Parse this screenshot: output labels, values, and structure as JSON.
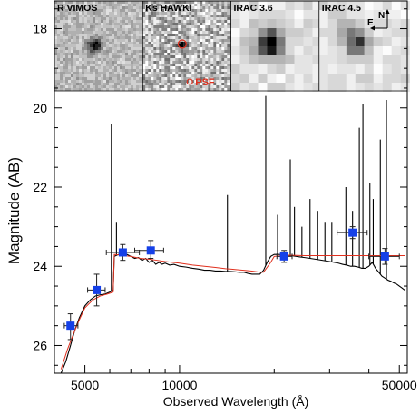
{
  "chart_data": {
    "type": "scatter",
    "title": "",
    "xlabel": "Observed Wavelength (Å)",
    "ylabel": "Magnitude (AB)",
    "x_scale": "log",
    "xlim": [
      4000,
      53000
    ],
    "ylim": [
      26.7,
      17.3
    ],
    "y_inverted": true,
    "grid": false,
    "x_ticks": [
      5000,
      10000,
      50000
    ],
    "x_tick_labels": [
      "5000",
      "10000",
      "50000"
    ],
    "y_ticks": [
      18,
      20,
      22,
      24,
      26
    ],
    "y_tick_labels": [
      "18",
      "20",
      "22",
      "24",
      "26"
    ],
    "photometry": {
      "color": "#1540e8",
      "points": [
        {
          "x": 4500,
          "y": 25.5,
          "xerr": [
            4300,
            4750
          ],
          "yerr": [
            25.2,
            25.85
          ]
        },
        {
          "x": 5450,
          "y": 24.6,
          "xerr": [
            5100,
            5800
          ],
          "yerr": [
            24.2,
            25.0
          ]
        },
        {
          "x": 6600,
          "y": 23.65,
          "xerr": [
            5850,
            7450
          ],
          "yerr": [
            23.45,
            23.85
          ]
        },
        {
          "x": 8100,
          "y": 23.6,
          "xerr": [
            7200,
            8900
          ],
          "yerr": [
            23.35,
            23.8
          ]
        },
        {
          "x": 21500,
          "y": 23.75,
          "xerr": [
            20400,
            22800
          ],
          "yerr": [
            23.6,
            23.9
          ]
        },
        {
          "x": 35500,
          "y": 23.15,
          "xerr": [
            31700,
            39500
          ],
          "yerr": [
            23.0,
            23.3
          ]
        },
        {
          "x": 45000,
          "y": 23.75,
          "xerr": [
            40000,
            50000
          ],
          "yerr": [
            23.55,
            23.95
          ]
        }
      ]
    },
    "model_black": {
      "color": "#000000",
      "x": [
        4200,
        4350,
        4500,
        4650,
        4800,
        5000,
        5200,
        5400,
        5600,
        5800,
        6000,
        6150,
        6200,
        6400,
        6600,
        6800,
        7000,
        7200,
        7400,
        7600,
        7800,
        8000,
        8200,
        8400,
        8600,
        8800,
        9000,
        9300,
        9600,
        10000,
        10500,
        11000,
        11500,
        12000,
        12500,
        13000,
        13500,
        14000,
        14500,
        15000,
        15500,
        16000,
        16500,
        17000,
        17500,
        18000,
        18500,
        19000,
        19500,
        20000,
        21000,
        22000,
        23000,
        24000,
        25000,
        26000,
        27000,
        28000,
        29000,
        30000,
        31000,
        32000,
        33000,
        34000,
        35000,
        36000,
        37000,
        38000,
        39000,
        40000,
        41000,
        42000,
        43000,
        44000,
        45000,
        46000,
        47000,
        48000,
        49000,
        50000,
        51000,
        52000
      ],
      "y": [
        26.7,
        26.4,
        26.0,
        25.6,
        25.3,
        25.0,
        24.85,
        24.75,
        24.72,
        24.7,
        24.65,
        24.6,
        23.75,
        23.7,
        23.73,
        23.7,
        23.75,
        23.8,
        23.78,
        23.85,
        23.8,
        23.9,
        23.85,
        23.95,
        23.9,
        23.95,
        23.92,
        23.97,
        23.95,
        24.0,
        24.02,
        24.05,
        24.07,
        24.1,
        24.1,
        24.12,
        24.12,
        24.13,
        24.13,
        24.14,
        24.15,
        24.15,
        24.18,
        24.2,
        24.2,
        24.2,
        24.1,
        23.9,
        23.75,
        23.7,
        23.7,
        23.72,
        23.74,
        23.76,
        23.78,
        23.8,
        23.82,
        23.84,
        23.86,
        23.88,
        23.9,
        23.92,
        23.95,
        23.97,
        24.0,
        24.0,
        24.02,
        24.05,
        24.05,
        24.0,
        23.9,
        24.05,
        24.15,
        24.25,
        24.3,
        24.35,
        24.38,
        24.42,
        24.45,
        24.5,
        24.55,
        24.6
      ]
    },
    "emission_lines": [
      {
        "x": 6070,
        "y": 20.4
      },
      {
        "x": 6300,
        "y": 22.9
      },
      {
        "x": 14200,
        "y": 22.2
      },
      {
        "x": 18800,
        "y": 19.7
      },
      {
        "x": 20500,
        "y": 22.7
      },
      {
        "x": 22500,
        "y": 21.3
      },
      {
        "x": 23200,
        "y": 22.5
      },
      {
        "x": 24500,
        "y": 23.0
      },
      {
        "x": 26000,
        "y": 22.3
      },
      {
        "x": 27500,
        "y": 22.6
      },
      {
        "x": 29000,
        "y": 22.9
      },
      {
        "x": 30500,
        "y": 22.9
      },
      {
        "x": 33800,
        "y": 22.0
      },
      {
        "x": 35500,
        "y": 22.6
      },
      {
        "x": 37300,
        "y": 20.5
      },
      {
        "x": 38300,
        "y": 19.9
      },
      {
        "x": 40300,
        "y": 21.9
      },
      {
        "x": 41300,
        "y": 22.3
      },
      {
        "x": 43500,
        "y": 20.8
      },
      {
        "x": 45500,
        "y": 19.8
      }
    ],
    "model_red": {
      "color": "#e0301e",
      "x": [
        4200,
        4400,
        4600,
        4800,
        5000,
        5300,
        5600,
        5900,
        6150,
        6200,
        6500,
        7000,
        7500,
        8000,
        8500,
        9000,
        10000,
        11000,
        12000,
        13000,
        14000,
        15000,
        16000,
        17000,
        18000,
        18500,
        19500,
        20000,
        22000,
        25000,
        30000,
        35000,
        40000,
        45000,
        50000,
        52000
      ],
      "y": [
        26.6,
        26.1,
        25.7,
        25.35,
        25.05,
        24.85,
        24.75,
        24.7,
        24.65,
        23.7,
        23.72,
        23.75,
        23.8,
        23.82,
        23.85,
        23.88,
        23.92,
        23.97,
        24.0,
        24.03,
        24.06,
        24.08,
        24.1,
        24.12,
        24.15,
        24.15,
        23.9,
        23.75,
        23.72,
        23.73,
        23.73,
        23.73,
        23.73,
        23.73,
        23.73,
        23.73
      ]
    },
    "stamps": [
      {
        "label": "R VIMOS",
        "kind": "vimos"
      },
      {
        "label": "Ks HAWKI",
        "kind": "hawki"
      },
      {
        "label": "IRAC 3.6",
        "kind": "irac1"
      },
      {
        "label": "IRAC 4.5",
        "kind": "irac2"
      }
    ],
    "psf_label": "PSF",
    "compass": {
      "north": "N",
      "east": "E"
    }
  }
}
